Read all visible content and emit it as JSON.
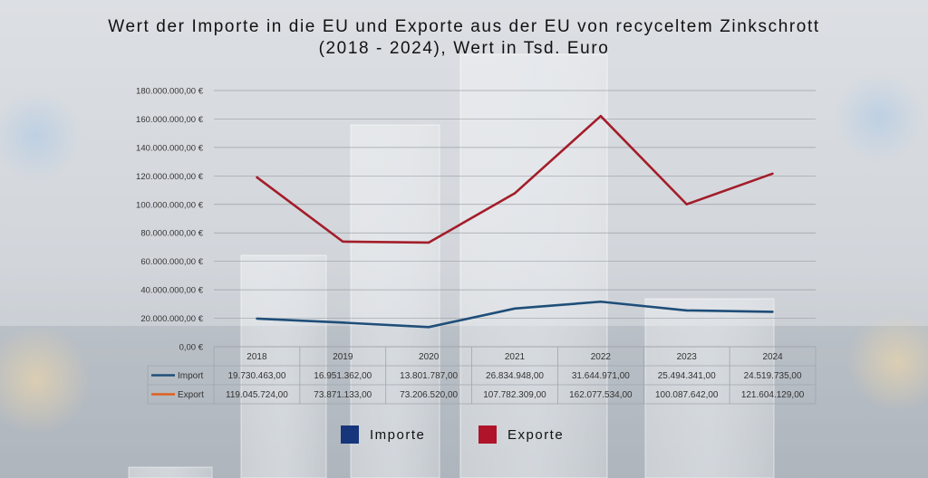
{
  "chart_data": {
    "type": "line",
    "title": "Wert der Importe in die EU und Exporte aus der EU von recyceltem Zinkschrott (2018 - 2024), Wert in Tsd. Euro",
    "categories": [
      "2018",
      "2019",
      "2020",
      "2021",
      "2022",
      "2023",
      "2024"
    ],
    "ylim": [
      0,
      180000000
    ],
    "y_ticks": [
      0,
      20000000,
      40000000,
      60000000,
      80000000,
      100000000,
      120000000,
      140000000,
      160000000,
      180000000
    ],
    "y_tick_labels": [
      "0,00 €",
      "20.000.000,00 €",
      "40.000.000,00 €",
      "60.000.000,00 €",
      "80.000.000,00 €",
      "100.000.000,00 €",
      "120.000.000,00 €",
      "140.000.000,00 €",
      "160.000.000,00 €",
      "180.000.000,00 €"
    ],
    "grid": true,
    "series": [
      {
        "name": "Import",
        "color": "#1f4e79",
        "values": [
          19730463,
          16951362,
          13801787,
          26834948,
          31644971,
          25494341,
          24519735
        ],
        "labels": [
          "19.730.463,00",
          "16.951.362,00",
          "13.801.787,00",
          "26.834.948,00",
          "31.644.971,00",
          "25.494.341,00",
          "24.519.735,00"
        ]
      },
      {
        "name": "Export",
        "color": "#a31d29",
        "values": [
          119045724,
          73871133,
          73206520,
          107782309,
          162077534,
          100087642,
          121604129
        ],
        "labels": [
          "119.045.724,00",
          "73.871.133,00",
          "73.206.520,00",
          "107.782.309,00",
          "162.077.534,00",
          "100.087.642,00",
          "121.604.129,00"
        ]
      }
    ],
    "data_table": true,
    "table_key_colors": [
      "#1f4e79",
      "#e0601e"
    ],
    "legend": {
      "placement": "bottom",
      "items": [
        {
          "label": "Importe",
          "color": "#17357a"
        },
        {
          "label": "Exporte",
          "color": "#b0142a"
        }
      ]
    }
  }
}
